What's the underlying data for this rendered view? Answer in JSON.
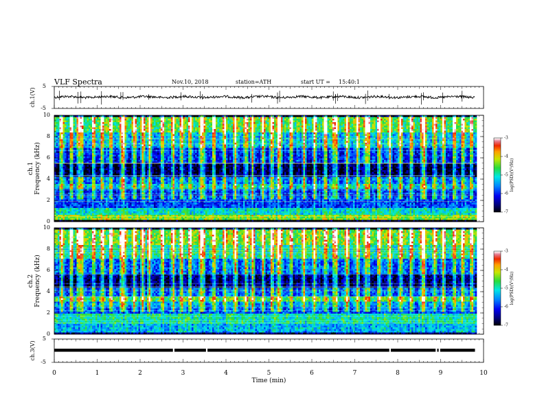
{
  "header": {
    "title": "VLF Spectra",
    "date": "Nov.10, 2018",
    "station": "station=ATH",
    "start_label": "start UT =",
    "start_time": "15:40:1"
  },
  "panels": {
    "ch1v": {
      "ylabel": "ch.1(V)",
      "ticks": [
        "5",
        "-5"
      ],
      "ylim": [
        -5,
        5
      ]
    },
    "spec1": {
      "ylabel_top": "ch.1",
      "ylabel": "Frequency (kHz)",
      "ticks": [
        "0",
        "2",
        "4",
        "6",
        "8",
        "10"
      ],
      "ylim": [
        0,
        10
      ]
    },
    "spec2": {
      "ylabel_top": "ch.2",
      "ylabel": "Frequency (kHz)",
      "ticks": [
        "0",
        "2",
        "4",
        "6",
        "8",
        "10"
      ],
      "ylim": [
        0,
        10
      ]
    },
    "ch3v": {
      "ylabel": "ch.3(V)",
      "ticks": [
        "5",
        "-5"
      ],
      "ylim": [
        -5,
        5
      ]
    }
  },
  "colorbar": {
    "label": "log(PSD)(V²/Hz)",
    "ticks": [
      "-3",
      "-4",
      "-5",
      "-6",
      "-7"
    ],
    "range": [
      -7,
      -3
    ]
  },
  "xaxis": {
    "label": "Time (min)",
    "ticks": [
      "0",
      "1",
      "2",
      "3",
      "4",
      "5",
      "6",
      "7",
      "8",
      "9",
      "10"
    ],
    "xlim": [
      0,
      10
    ]
  },
  "chart_data": [
    {
      "type": "line",
      "name": "ch.1 waveform",
      "xlabel": "",
      "ylabel": "ch.1(V)",
      "xlim": [
        0,
        10
      ],
      "ylim": [
        -5,
        5
      ],
      "baseline_v": 0.2,
      "x_end": 9.8,
      "spikes_min": [
        0.12,
        0.55,
        0.62,
        1.1,
        1.55,
        1.6,
        2.2,
        2.95,
        3.4,
        3.45,
        4.6,
        5.2,
        5.25,
        6.5,
        6.55,
        6.6,
        7.25,
        7.3,
        7.8,
        8.55,
        8.6,
        9.05,
        9.5
      ]
    },
    {
      "type": "heatmap",
      "name": "ch.1 spectrogram",
      "xlabel": "Time (min)",
      "ylabel": "Frequency (kHz)",
      "xlim": [
        0,
        10
      ],
      "ylim": [
        0,
        10
      ],
      "x_end": 9.8,
      "colorbar_range": [
        -7,
        -3
      ],
      "bands_log_psd": [
        {
          "f": [
            0,
            0.3
          ],
          "v": -7.0
        },
        {
          "f": [
            0.3,
            0.7
          ],
          "v": -4.3
        },
        {
          "f": [
            0.7,
            1.3
          ],
          "v": -5.0
        },
        {
          "f": [
            1.3,
            2.5
          ],
          "v": -5.8
        },
        {
          "f": [
            2.5,
            3.2
          ],
          "v": -6.0
        },
        {
          "f": [
            3.2,
            3.6
          ],
          "v": -5.2
        },
        {
          "f": [
            3.6,
            4.2
          ],
          "v": -5.7
        },
        {
          "f": [
            4.2,
            5.6
          ],
          "v": -6.8
        },
        {
          "f": [
            5.6,
            7.0
          ],
          "v": -6.0
        },
        {
          "f": [
            7.0,
            8.5
          ],
          "v": -5.3
        },
        {
          "f": [
            8.5,
            10.0
          ],
          "v": -4.6
        }
      ],
      "sferic_times_min": [
        0.15,
        0.38,
        0.55,
        0.62,
        0.9,
        1.1,
        1.3,
        1.55,
        1.6,
        1.85,
        2.05,
        2.2,
        2.5,
        2.75,
        2.95,
        3.15,
        3.4,
        3.45,
        3.7,
        3.95,
        4.2,
        4.45,
        4.6,
        4.85,
        5.05,
        5.2,
        5.25,
        5.5,
        5.8,
        6.05,
        6.3,
        6.5,
        6.55,
        6.8,
        7.05,
        7.25,
        7.3,
        7.55,
        7.8,
        8.05,
        8.3,
        8.55,
        8.6,
        8.85,
        9.05,
        9.3,
        9.5,
        9.7
      ]
    },
    {
      "type": "heatmap",
      "name": "ch.2 spectrogram",
      "xlabel": "Time (min)",
      "ylabel": "Frequency (kHz)",
      "xlim": [
        0,
        10
      ],
      "ylim": [
        0,
        10
      ],
      "x_end": 9.8,
      "colorbar_range": [
        -7,
        -3
      ],
      "bands_log_psd": [
        {
          "f": [
            0,
            0.3
          ],
          "v": -6.5
        },
        {
          "f": [
            0.3,
            1.0
          ],
          "v": -5.3
        },
        {
          "f": [
            1.0,
            2.0
          ],
          "v": -4.9
        },
        {
          "f": [
            2.0,
            2.6
          ],
          "v": -5.8
        },
        {
          "f": [
            2.6,
            3.2
          ],
          "v": -5.5
        },
        {
          "f": [
            3.2,
            3.7
          ],
          "v": -4.7
        },
        {
          "f": [
            3.7,
            4.5
          ],
          "v": -5.8
        },
        {
          "f": [
            4.5,
            5.8
          ],
          "v": -6.7
        },
        {
          "f": [
            5.8,
            7.2
          ],
          "v": -5.8
        },
        {
          "f": [
            7.2,
            8.5
          ],
          "v": -5.0
        },
        {
          "f": [
            8.5,
            10.0
          ],
          "v": -4.5
        }
      ],
      "sferic_times_min": [
        0.15,
        0.38,
        0.55,
        0.62,
        0.9,
        1.1,
        1.3,
        1.55,
        1.6,
        1.85,
        2.05,
        2.2,
        2.5,
        2.75,
        2.95,
        3.15,
        3.4,
        3.45,
        3.7,
        3.95,
        4.2,
        4.45,
        4.6,
        4.85,
        5.05,
        5.2,
        5.25,
        5.5,
        5.8,
        6.05,
        6.3,
        6.5,
        6.55,
        6.8,
        7.05,
        7.25,
        7.3,
        7.55,
        7.8,
        8.05,
        8.3,
        8.55,
        8.6,
        8.85,
        9.05,
        9.3,
        9.5,
        9.7
      ]
    },
    {
      "type": "line",
      "name": "ch.3 waveform",
      "xlabel": "Time (min)",
      "ylabel": "ch.3(V)",
      "xlim": [
        0,
        10
      ],
      "ylim": [
        -5,
        5
      ],
      "baseline_v": 0.2,
      "x_end": 9.8,
      "gaps_min": [
        2.78,
        3.55,
        7.82,
        8.9,
        8.97
      ]
    }
  ]
}
